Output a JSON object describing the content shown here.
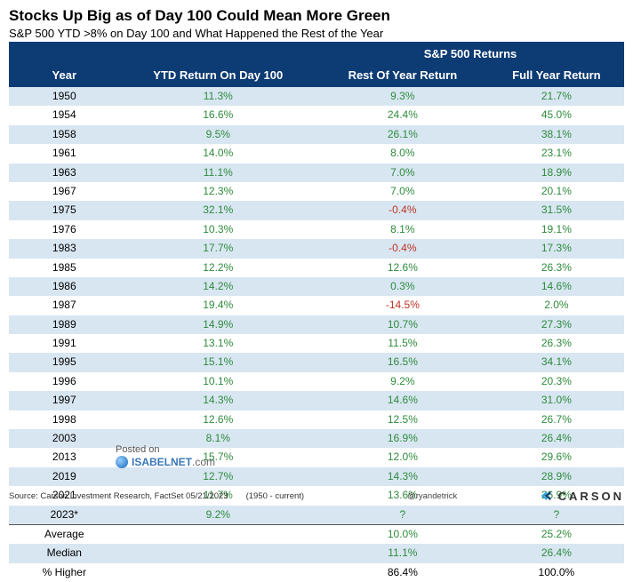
{
  "colors": {
    "header_bg": "#0d3b73",
    "row_alt_bg": "#d8e6f2",
    "row_bg": "#ffffff",
    "positive": "#2e8b3b",
    "negative": "#c03323",
    "neutral": "#000000"
  },
  "title": "Stocks Up Big as of Day 100 Could Mean More Green",
  "subtitle": "S&P 500 YTD >8% on Day 100 and What Happened the Rest of the Year",
  "header": {
    "group": "S&P 500 Returns",
    "year": "Year",
    "c1": "YTD Return On Day 100",
    "c2": "Rest Of Year Return",
    "c3": "Full Year Return"
  },
  "rows": [
    {
      "year": "1950",
      "ytd": "11.3%",
      "rest": "9.3%",
      "full": "21.7%",
      "ytd_c": "positive",
      "rest_c": "positive",
      "full_c": "positive"
    },
    {
      "year": "1954",
      "ytd": "16.6%",
      "rest": "24.4%",
      "full": "45.0%",
      "ytd_c": "positive",
      "rest_c": "positive",
      "full_c": "positive"
    },
    {
      "year": "1958",
      "ytd": "9.5%",
      "rest": "26.1%",
      "full": "38.1%",
      "ytd_c": "positive",
      "rest_c": "positive",
      "full_c": "positive"
    },
    {
      "year": "1961",
      "ytd": "14.0%",
      "rest": "8.0%",
      "full": "23.1%",
      "ytd_c": "positive",
      "rest_c": "positive",
      "full_c": "positive"
    },
    {
      "year": "1963",
      "ytd": "11.1%",
      "rest": "7.0%",
      "full": "18.9%",
      "ytd_c": "positive",
      "rest_c": "positive",
      "full_c": "positive"
    },
    {
      "year": "1967",
      "ytd": "12.3%",
      "rest": "7.0%",
      "full": "20.1%",
      "ytd_c": "positive",
      "rest_c": "positive",
      "full_c": "positive"
    },
    {
      "year": "1975",
      "ytd": "32.1%",
      "rest": "-0.4%",
      "full": "31.5%",
      "ytd_c": "positive",
      "rest_c": "negative",
      "full_c": "positive"
    },
    {
      "year": "1976",
      "ytd": "10.3%",
      "rest": "8.1%",
      "full": "19.1%",
      "ytd_c": "positive",
      "rest_c": "positive",
      "full_c": "positive"
    },
    {
      "year": "1983",
      "ytd": "17.7%",
      "rest": "-0.4%",
      "full": "17.3%",
      "ytd_c": "positive",
      "rest_c": "negative",
      "full_c": "positive"
    },
    {
      "year": "1985",
      "ytd": "12.2%",
      "rest": "12.6%",
      "full": "26.3%",
      "ytd_c": "positive",
      "rest_c": "positive",
      "full_c": "positive"
    },
    {
      "year": "1986",
      "ytd": "14.2%",
      "rest": "0.3%",
      "full": "14.6%",
      "ytd_c": "positive",
      "rest_c": "positive",
      "full_c": "positive"
    },
    {
      "year": "1987",
      "ytd": "19.4%",
      "rest": "-14.5%",
      "full": "2.0%",
      "ytd_c": "positive",
      "rest_c": "negative",
      "full_c": "positive"
    },
    {
      "year": "1989",
      "ytd": "14.9%",
      "rest": "10.7%",
      "full": "27.3%",
      "ytd_c": "positive",
      "rest_c": "positive",
      "full_c": "positive"
    },
    {
      "year": "1991",
      "ytd": "13.1%",
      "rest": "11.5%",
      "full": "26.3%",
      "ytd_c": "positive",
      "rest_c": "positive",
      "full_c": "positive"
    },
    {
      "year": "1995",
      "ytd": "15.1%",
      "rest": "16.5%",
      "full": "34.1%",
      "ytd_c": "positive",
      "rest_c": "positive",
      "full_c": "positive"
    },
    {
      "year": "1996",
      "ytd": "10.1%",
      "rest": "9.2%",
      "full": "20.3%",
      "ytd_c": "positive",
      "rest_c": "positive",
      "full_c": "positive"
    },
    {
      "year": "1997",
      "ytd": "14.3%",
      "rest": "14.6%",
      "full": "31.0%",
      "ytd_c": "positive",
      "rest_c": "positive",
      "full_c": "positive"
    },
    {
      "year": "1998",
      "ytd": "12.6%",
      "rest": "12.5%",
      "full": "26.7%",
      "ytd_c": "positive",
      "rest_c": "positive",
      "full_c": "positive"
    },
    {
      "year": "2003",
      "ytd": "8.1%",
      "rest": "16.9%",
      "full": "26.4%",
      "ytd_c": "positive",
      "rest_c": "positive",
      "full_c": "positive"
    },
    {
      "year": "2013",
      "ytd": "15.7%",
      "rest": "12.0%",
      "full": "29.6%",
      "ytd_c": "positive",
      "rest_c": "positive",
      "full_c": "positive"
    },
    {
      "year": "2019",
      "ytd": "12.7%",
      "rest": "14.3%",
      "full": "28.9%",
      "ytd_c": "positive",
      "rest_c": "positive",
      "full_c": "positive"
    },
    {
      "year": "2021",
      "ytd": "11.7%",
      "rest": "13.6%",
      "full": "26.9%",
      "ytd_c": "positive",
      "rest_c": "positive",
      "full_c": "positive"
    },
    {
      "year": "2023*",
      "ytd": "9.2%",
      "rest": "?",
      "full": "?",
      "ytd_c": "positive",
      "rest_c": "positive",
      "full_c": "positive"
    }
  ],
  "summary": [
    {
      "label": "Average",
      "ytd": "",
      "rest": "10.0%",
      "full": "25.2%",
      "rest_c": "positive",
      "full_c": "positive",
      "sep": true
    },
    {
      "label": "Median",
      "ytd": "",
      "rest": "11.1%",
      "full": "26.4%",
      "rest_c": "positive",
      "full_c": "positive"
    },
    {
      "label": "% Higher",
      "ytd": "",
      "rest": "86.4%",
      "full": "100.0%",
      "rest_c": "neutral",
      "full_c": "neutral"
    }
  ],
  "posted": {
    "prefix": "Posted on",
    "site": "ISABELNET",
    "tld": ".com"
  },
  "footer": {
    "source": "Source: Carson Investment Research, FactSet 05/21/2023",
    "range": "(1950 - current)",
    "handle": "@ryandetrick",
    "brand": "CARSON"
  }
}
